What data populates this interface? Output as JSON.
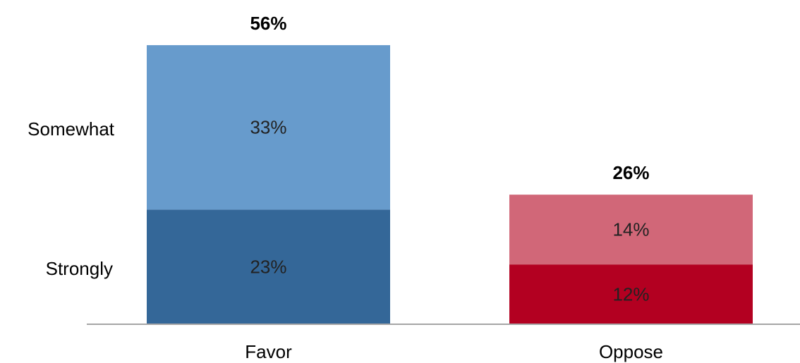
{
  "chart_data": {
    "type": "bar",
    "stacked": true,
    "categories": [
      "Favor",
      "Oppose"
    ],
    "row_labels": [
      "Somewhat",
      "Strongly"
    ],
    "bars": [
      {
        "category": "Favor",
        "total": 56,
        "total_label": "56%",
        "segments": [
          {
            "value": 23,
            "label": "23%",
            "color": "#346798"
          },
          {
            "value": 33,
            "label": "33%",
            "color": "#679bcc"
          }
        ]
      },
      {
        "category": "Oppose",
        "total": 26,
        "total_label": "26%",
        "segments": [
          {
            "value": 12,
            "label": "12%",
            "color": "#b30021"
          },
          {
            "value": 14,
            "label": "14%",
            "color": "#d16778"
          }
        ]
      }
    ],
    "ylim": [
      0,
      60
    ],
    "grid": false,
    "colors": {
      "favor_strongly": "#346798",
      "favor_somewhat": "#679bcc",
      "oppose_strongly": "#b30021",
      "oppose_somewhat": "#d16778",
      "baseline": "#a6a6a6"
    }
  }
}
